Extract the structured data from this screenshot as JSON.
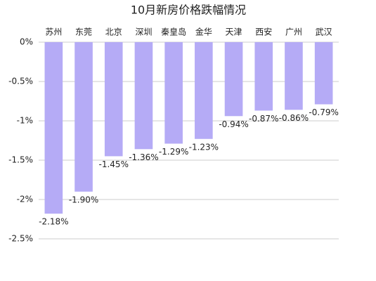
{
  "chart_data": {
    "type": "bar",
    "title": "10月新房价格跌幅情况",
    "categories": [
      "苏州",
      "东莞",
      "北京",
      "深圳",
      "秦皇岛",
      "金华",
      "天津",
      "西安",
      "广州",
      "武汉"
    ],
    "values": [
      -2.18,
      -1.9,
      -1.45,
      -1.36,
      -1.29,
      -1.23,
      -0.94,
      -0.87,
      -0.86,
      -0.79
    ],
    "value_labels": [
      "-2.18%",
      "-1.90%",
      "-1.45%",
      "-1.36%",
      "-1.29%",
      "-1.23%",
      "-0.94%",
      "-0.87%",
      "-0.86%",
      "-0.79%"
    ],
    "color": "#b5abf6",
    "ylim": [
      -2.5,
      0
    ],
    "yticks": [
      {
        "value": 0,
        "label": "0%"
      },
      {
        "value": -0.5,
        "label": "-0.5%"
      },
      {
        "value": -1,
        "label": "-1%"
      },
      {
        "value": -1.5,
        "label": "-1.5%"
      },
      {
        "value": -2,
        "label": "-2%"
      },
      {
        "value": -2.5,
        "label": "-2.5%"
      }
    ],
    "grid": true
  }
}
